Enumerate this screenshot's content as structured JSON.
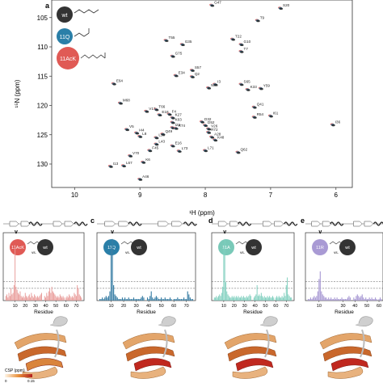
{
  "panel_labels": {
    "a": "a",
    "c": "c",
    "d": "d",
    "e": "e"
  },
  "legend_a": {
    "wt": {
      "label": "wt",
      "color": "#333333"
    },
    "q11": {
      "label": "11Q",
      "color": "#2a7fa8"
    },
    "acK11": {
      "label": "11AcK",
      "color": "#e05a55"
    }
  },
  "chart_data": [
    {
      "type": "scatter",
      "title": "",
      "xlabel": "¹H (ppm)",
      "ylabel": "¹⁵N (ppm)",
      "xlim": [
        10.35,
        5.75
      ],
      "ylim": [
        102,
        134
      ],
      "x_ticks": [
        "10",
        "9",
        "8",
        "7",
        "6"
      ],
      "y_ticks": [
        "105",
        "110",
        "115",
        "120",
        "125",
        "130"
      ],
      "x_tick_values": [
        10,
        9,
        8,
        7,
        6
      ],
      "y_tick_values": [
        105,
        110,
        115,
        120,
        125,
        130
      ],
      "peaks": [
        {
          "label": "G47",
          "h": 7.9,
          "n": 102.9
        },
        {
          "label": "S20",
          "h": 6.85,
          "n": 103.4
        },
        {
          "label": "T9",
          "h": 7.2,
          "n": 105.5
        },
        {
          "label": "G35",
          "h": 8.35,
          "n": 109.6
        },
        {
          "label": "T55",
          "h": 8.6,
          "n": 108.9
        },
        {
          "label": "T22",
          "h": 7.58,
          "n": 108.7
        },
        {
          "label": "G10",
          "h": 7.45,
          "n": 109.6
        },
        {
          "label": "T7",
          "h": 7.45,
          "n": 110.8
        },
        {
          "label": "G75",
          "h": 8.5,
          "n": 111.6
        },
        {
          "label": "E34",
          "h": 8.45,
          "n": 114.9
        },
        {
          "label": "S57",
          "h": 8.2,
          "n": 114.0
        },
        {
          "label": "S65",
          "h": 7.45,
          "n": 116.4
        },
        {
          "label": "N60",
          "h": 7.95,
          "n": 117.0
        },
        {
          "label": "E64",
          "h": 9.4,
          "n": 116.3
        },
        {
          "label": "Q2",
          "h": 8.2,
          "n": 115.1
        },
        {
          "label": "I3",
          "h": 7.85,
          "n": 116.4
        },
        {
          "label": "K33",
          "h": 7.35,
          "n": 117.3
        },
        {
          "label": "Y59",
          "h": 7.15,
          "n": 117.1
        },
        {
          "label": "M68",
          "h": 9.3,
          "n": 119.6
        },
        {
          "label": "V17",
          "h": 8.9,
          "n": 121.0
        },
        {
          "label": "T66",
          "h": 8.75,
          "n": 120.7
        },
        {
          "label": "E18",
          "h": 8.7,
          "n": 121.6
        },
        {
          "label": "F4",
          "h": 8.55,
          "n": 121.5
        },
        {
          "label": "K27",
          "h": 8.5,
          "n": 122.1
        },
        {
          "label": "Q41",
          "h": 7.25,
          "n": 120.3
        },
        {
          "label": "R54",
          "h": 7.25,
          "n": 122.0
        },
        {
          "label": "I61",
          "h": 7.0,
          "n": 121.8
        },
        {
          "label": "I36",
          "h": 6.05,
          "n": 123.3
        },
        {
          "label": "D32",
          "h": 8.05,
          "n": 122.8
        },
        {
          "label": "K63",
          "h": 8.5,
          "n": 122.9
        },
        {
          "label": "D52",
          "h": 8.0,
          "n": 123.4
        },
        {
          "label": "I23",
          "h": 8.5,
          "n": 123.8
        },
        {
          "label": "R74",
          "h": 8.45,
          "n": 123.9
        },
        {
          "label": "V5",
          "h": 9.2,
          "n": 124.1
        },
        {
          "label": "I44",
          "h": 9.05,
          "n": 124.7
        },
        {
          "label": "L8",
          "h": 9.0,
          "n": 125.3
        },
        {
          "label": "Q49",
          "h": 8.65,
          "n": 124.9
        },
        {
          "label": "V26",
          "h": 7.95,
          "n": 124.0
        },
        {
          "label": "R72",
          "h": 7.95,
          "n": 124.6
        },
        {
          "label": "L50",
          "h": 8.75,
          "n": 125.5
        },
        {
          "label": "A28",
          "h": 7.9,
          "n": 125.4
        },
        {
          "label": "K48",
          "h": 7.85,
          "n": 125.9
        },
        {
          "label": "L43",
          "h": 8.75,
          "n": 126.6
        },
        {
          "label": "E16",
          "h": 8.5,
          "n": 126.9
        },
        {
          "label": "F45",
          "h": 8.85,
          "n": 127.7
        },
        {
          "label": "L73",
          "h": 8.4,
          "n": 127.8
        },
        {
          "label": "L71",
          "h": 8.0,
          "n": 127.7
        },
        {
          "label": "Q62",
          "h": 7.5,
          "n": 128.0
        },
        {
          "label": "V70",
          "h": 9.15,
          "n": 128.6
        },
        {
          "label": "K6",
          "h": 8.95,
          "n": 129.7
        },
        {
          "label": "I13",
          "h": 9.45,
          "n": 130.4
        },
        {
          "label": "L67",
          "h": 9.25,
          "n": 130.3
        },
        {
          "label": "A46",
          "h": 9.0,
          "n": 132.6
        }
      ]
    },
    {
      "type": "bar",
      "panel": "b",
      "legend": [
        "11AcK",
        "vs.",
        "wt"
      ],
      "color": "#e89a98",
      "xlabel": "Residue",
      "x_ticks": [
        "10",
        "20",
        "30",
        "40",
        "50",
        "60",
        "70"
      ],
      "xlim": [
        0,
        76
      ],
      "values": [
        0.3,
        0.4,
        0.2,
        0.5,
        0.3,
        0.8,
        0.4,
        0.5,
        1.0,
        3.6,
        0.9,
        0.7,
        0.5,
        0.4,
        0.6,
        0.3,
        0.2,
        0.3,
        0.2,
        0.5,
        0.3,
        0.2,
        0.3,
        0.4,
        0.2,
        0.5,
        0.3,
        0.2,
        0.4,
        0.3,
        0.2,
        0.3,
        0.2,
        0.3,
        0.4,
        0.5,
        0,
        0,
        0.3,
        0.2,
        0.5,
        0.3,
        0.6,
        0.8,
        0.5,
        0.9,
        0.6,
        0.5,
        0.4,
        0.3,
        0.2,
        0.3,
        0.2,
        0.4,
        0.3,
        0.2,
        0.3,
        0.2,
        0,
        0.2,
        0.3,
        0.2,
        0.4,
        0.3,
        0.2,
        0.3,
        0.2,
        0.5,
        0.4,
        0.3,
        1.0,
        0.8,
        0.4,
        0.3,
        0.2
      ]
    },
    {
      "type": "bar",
      "panel": "c",
      "legend": [
        "11Q",
        "vs.",
        "wt"
      ],
      "color": "#3a7fa5",
      "xlabel": "Residue",
      "x_ticks": [
        "10",
        "20",
        "30",
        "40",
        "50",
        "60",
        "70"
      ],
      "xlim": [
        0,
        76
      ],
      "values": [
        0.1,
        0.1,
        0.2,
        0.1,
        0.2,
        0.3,
        0.2,
        0.3,
        0.6,
        3.4,
        4.0,
        1.0,
        0.4,
        0.3,
        0.2,
        0.1,
        0.1,
        0.1,
        0.2,
        0.1,
        0.2,
        0.1,
        0.1,
        0.2,
        0.1,
        0.1,
        0.1,
        0.2,
        0.1,
        0.1,
        0.1,
        0.1,
        0.1,
        0.2,
        0.3,
        0.2,
        0,
        0,
        0.2,
        0.1,
        0.3,
        0.6,
        0.2,
        0.1,
        0.2,
        0.3,
        0.2,
        0.1,
        0.1,
        0.2,
        0.1,
        0.1,
        0.2,
        0.1,
        0.1,
        0.1,
        0.2,
        0.1,
        0,
        0.1,
        0.1,
        0.1,
        0.2,
        0.1,
        0.1,
        0.1,
        0.1,
        0.2,
        0.1,
        0.1,
        0.6,
        0.4,
        0.2,
        0.1,
        0.1
      ]
    },
    {
      "type": "bar",
      "panel": "d",
      "legend": [
        "11A",
        "vs.",
        "wt"
      ],
      "color": "#7fcfbe",
      "xlabel": "Residue",
      "x_ticks": [
        "10",
        "20",
        "30",
        "40",
        "50",
        "60",
        "70"
      ],
      "xlim": [
        0,
        76
      ],
      "values": [
        0.2,
        0.2,
        0.3,
        0.2,
        0.3,
        0.4,
        0.3,
        0.5,
        0.9,
        3.4,
        4.0,
        1.2,
        0.6,
        0.4,
        0.3,
        0.2,
        0.2,
        0.3,
        0.2,
        0.3,
        0.2,
        0.3,
        0.2,
        0.3,
        0.2,
        0.2,
        0.3,
        0.2,
        0.3,
        0.2,
        0.2,
        0.3,
        0.2,
        0.3,
        0.4,
        0.3,
        0,
        0,
        0.2,
        0.3,
        0.4,
        1.0,
        0.3,
        0.4,
        0.3,
        0.5,
        0.3,
        0.2,
        0.3,
        0.2,
        0.2,
        0.3,
        0.2,
        0.3,
        0.2,
        0.2,
        0.3,
        0.2,
        0,
        0.2,
        0.3,
        0.2,
        0.3,
        0.2,
        0.2,
        0.3,
        0.2,
        0.5,
        0.3,
        1.0,
        1.5,
        0.4,
        0.3,
        0.2,
        0.2
      ]
    },
    {
      "type": "bar",
      "panel": "e",
      "legend": [
        "11R",
        "vs.",
        "wt"
      ],
      "color": "#a99ad4",
      "xlabel": "Residue",
      "x_ticks": [
        "10",
        "30",
        "40",
        "50",
        "60"
      ],
      "xlim": [
        0,
        62
      ],
      "values": [
        0.1,
        0.1,
        0.2,
        0.1,
        0.2,
        0.3,
        0.2,
        0.3,
        0.6,
        1.4,
        1.9,
        0.6,
        0.4,
        0.3,
        0.2,
        0.2,
        0.1,
        0.2,
        0.1,
        0.2,
        0.1,
        0.1,
        0.2,
        0.1,
        0.2,
        0.1,
        0.1,
        0.1,
        0.2,
        0.1,
        0.1,
        0.1,
        0.1,
        0.2,
        0.3,
        0.2,
        0,
        0,
        0.2,
        0.1,
        0.3,
        0.4,
        0.3,
        0.2,
        0.3,
        0.4,
        0.2,
        0.1,
        0.2,
        0.1,
        0.1,
        0.2,
        0.1,
        0.2,
        0.1,
        0.1,
        0.2,
        0.1,
        0,
        0.1,
        0.2,
        0.1
      ]
    }
  ],
  "colorbar": {
    "title": "CSP (ppm)",
    "min_label": "0",
    "max_label": "0.15"
  },
  "arrow_marker": "v"
}
